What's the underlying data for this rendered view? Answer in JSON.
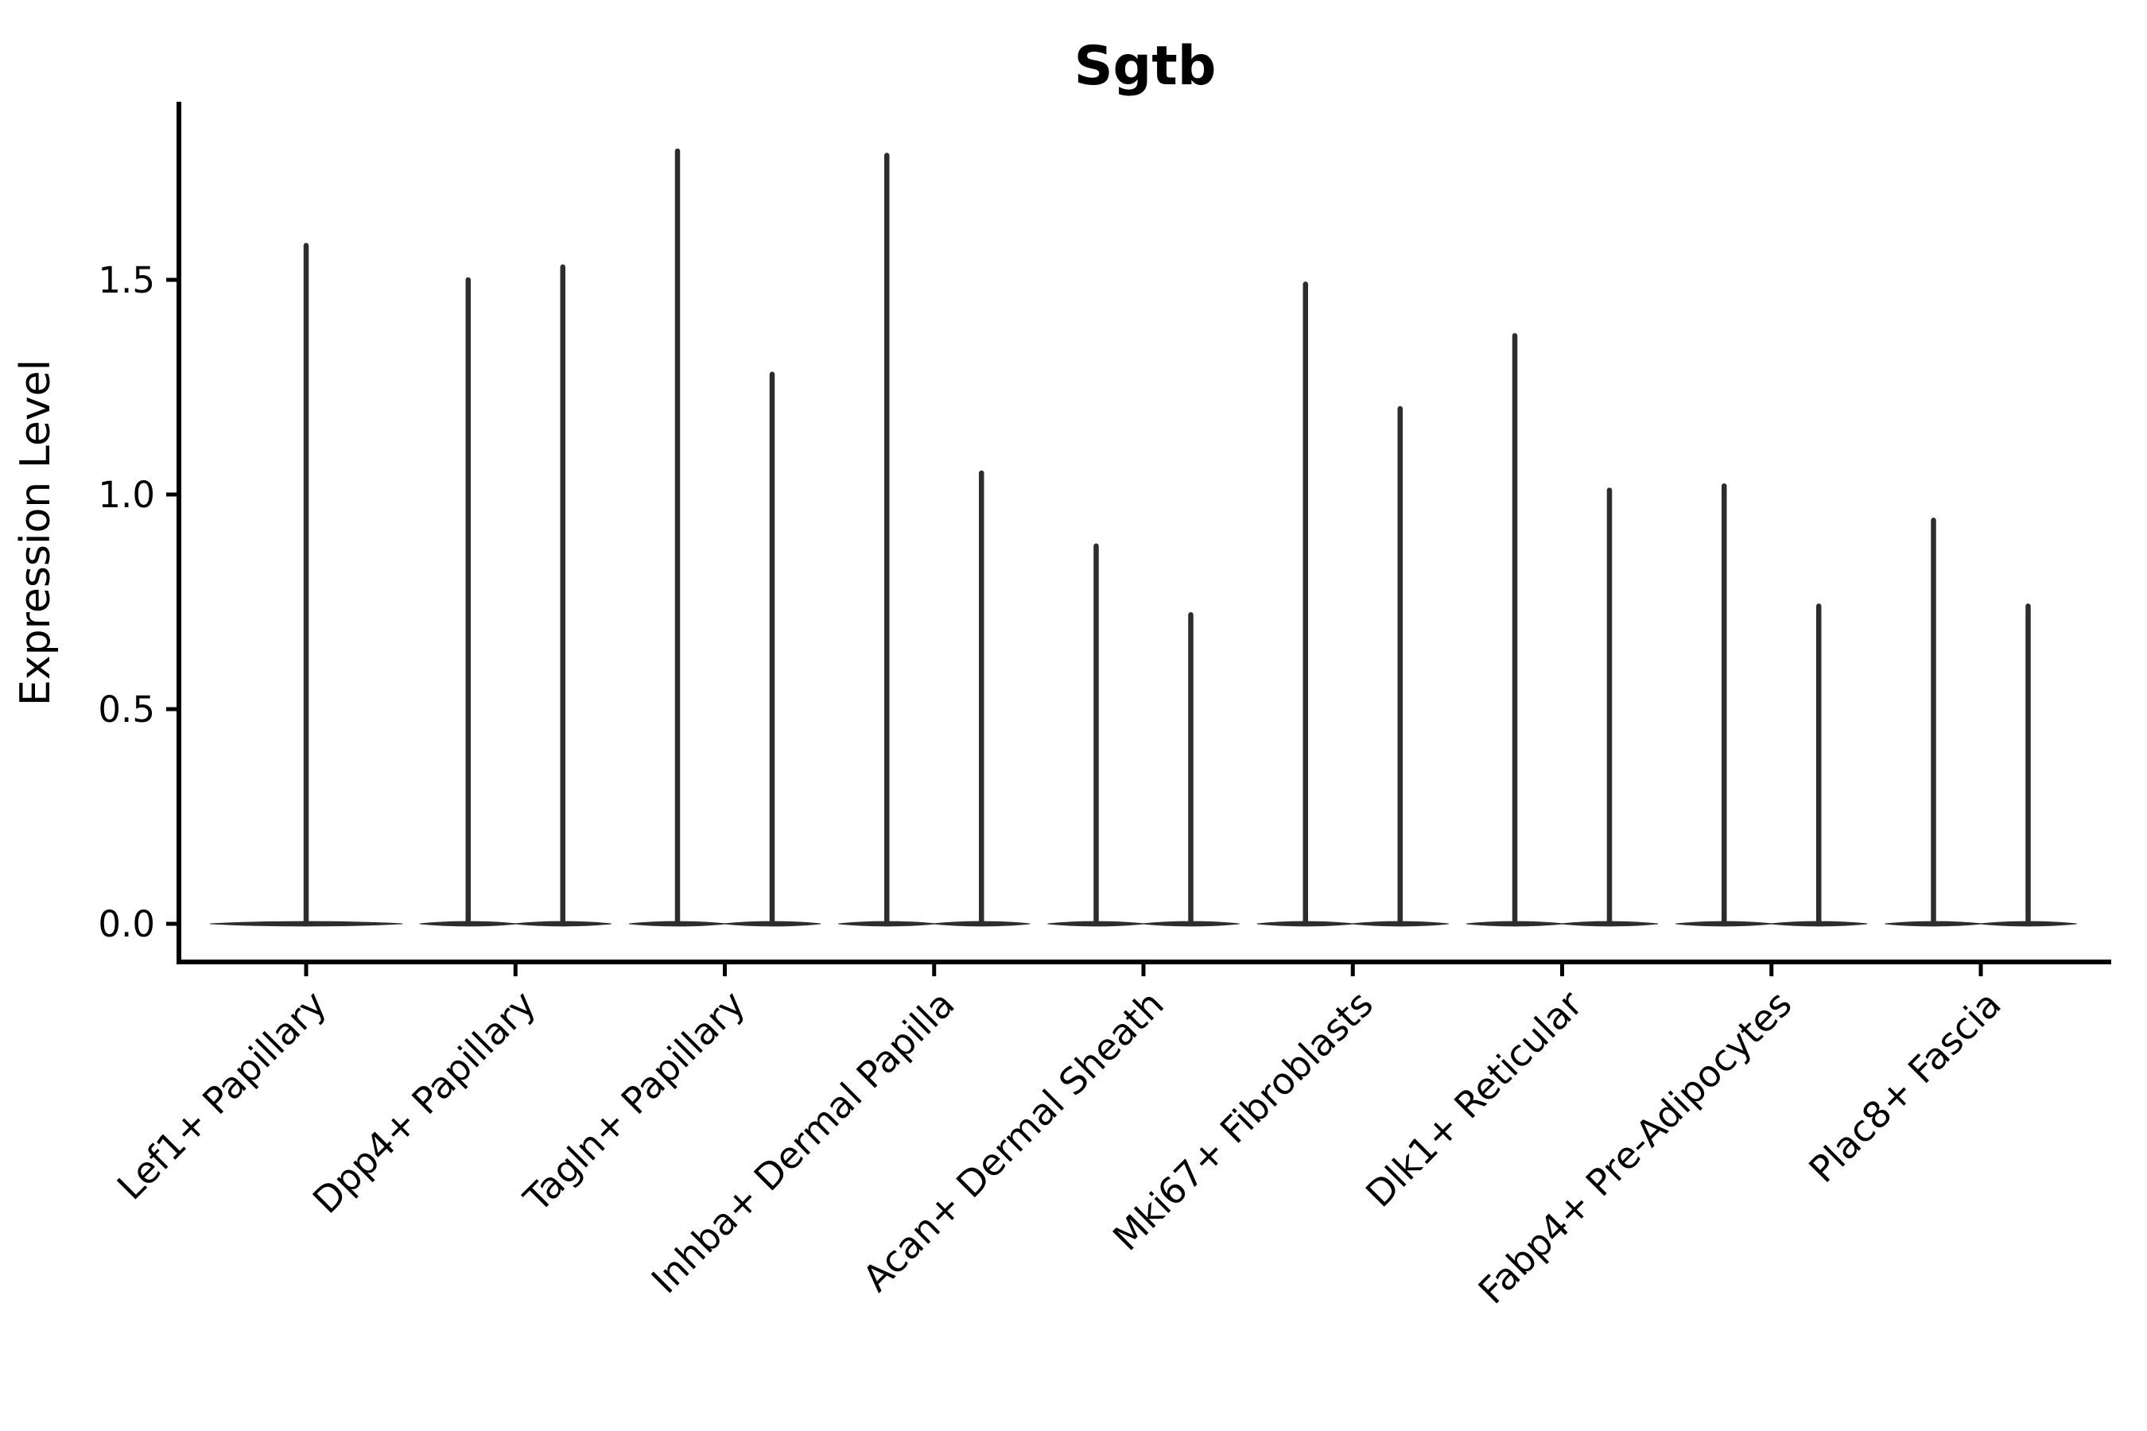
{
  "figure": {
    "background": "#ffffff"
  },
  "chart_data": {
    "type": "violin",
    "title": "Sgtb",
    "ylabel": "Expression Level",
    "xlabel": "",
    "grid": false,
    "legend": null,
    "axis_color": "#000000",
    "violin_color": "#2d2d2d",
    "ylim": [
      -0.09,
      1.91
    ],
    "y_ticks": [
      {
        "label": "0.0",
        "value": 0.0
      },
      {
        "label": "0.5",
        "value": 0.5
      },
      {
        "label": "1.0",
        "value": 1.0
      },
      {
        "label": "1.5",
        "value": 1.5
      }
    ],
    "x_tick_rotation_deg": 45,
    "categories": [
      {
        "label": "Lef1+ Papillary",
        "violins": [
          {
            "align": "center",
            "min": 0.0,
            "max": 1.58
          }
        ]
      },
      {
        "label": "Dpp4+ Papillary",
        "violins": [
          {
            "align": "left",
            "min": 0.0,
            "max": 1.5
          },
          {
            "align": "right",
            "min": 0.0,
            "max": 1.53
          }
        ]
      },
      {
        "label": "Tagln+ Papillary",
        "violins": [
          {
            "align": "left",
            "min": 0.0,
            "max": 1.8
          },
          {
            "align": "right",
            "min": 0.0,
            "max": 1.28
          }
        ]
      },
      {
        "label": "Inhba+ Dermal Papilla",
        "violins": [
          {
            "align": "left",
            "min": 0.0,
            "max": 1.79
          },
          {
            "align": "right",
            "min": 0.0,
            "max": 1.05
          }
        ]
      },
      {
        "label": "Acan+ Dermal Sheath",
        "violins": [
          {
            "align": "left",
            "min": 0.0,
            "max": 0.88
          },
          {
            "align": "right",
            "min": 0.0,
            "max": 0.72
          }
        ]
      },
      {
        "label": "Mki67+ Fibroblasts",
        "violins": [
          {
            "align": "left",
            "min": 0.0,
            "max": 1.49
          },
          {
            "align": "right",
            "min": 0.0,
            "max": 1.2
          }
        ]
      },
      {
        "label": "Dlk1+ Reticular",
        "violins": [
          {
            "align": "left",
            "min": 0.0,
            "max": 1.37
          },
          {
            "align": "right",
            "min": 0.0,
            "max": 1.01
          }
        ]
      },
      {
        "label": "Fabp4+ Pre-Adipocytes",
        "violins": [
          {
            "align": "left",
            "min": 0.0,
            "max": 1.02
          },
          {
            "align": "right",
            "min": 0.0,
            "max": 0.74
          }
        ]
      },
      {
        "label": "Plac8+ Fascia",
        "violins": [
          {
            "align": "left",
            "min": 0.0,
            "max": 0.94
          },
          {
            "align": "right",
            "min": 0.0,
            "max": 0.74
          }
        ]
      }
    ]
  }
}
